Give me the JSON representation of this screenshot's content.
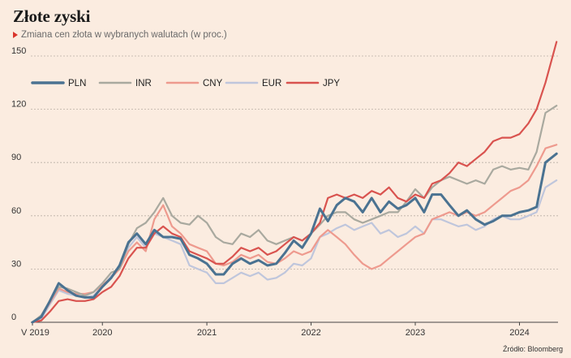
{
  "title": "Złote zyski",
  "subtitle": "Zmiana cen złota w wybranych walutach (w proc.)",
  "source": "Źródło: Bloomberg",
  "chart_data": {
    "type": "line",
    "ylim": [
      0,
      150
    ],
    "yticks": [
      0,
      30,
      60,
      90,
      120,
      150
    ],
    "xlim": [
      "2019-05-01",
      "2024-05-15"
    ],
    "xticks": [
      {
        "label": "V 2019",
        "date": "2019-05-01"
      },
      {
        "label": "2020",
        "date": "2020-01-01"
      },
      {
        "label": "2021",
        "date": "2021-01-01"
      },
      {
        "label": "2022",
        "date": "2022-01-01"
      },
      {
        "label": "2023",
        "date": "2023-01-01"
      },
      {
        "label": "2024",
        "date": "2024-01-01"
      }
    ],
    "grid": "horizontal-dashed",
    "legend": "top-left",
    "series": [
      {
        "name": "PLN",
        "color": "#4a7291",
        "x": [
          "2019-05-01",
          "2019-06-01",
          "2019-07-01",
          "2019-08-01",
          "2019-09-01",
          "2019-10-01",
          "2019-11-01",
          "2019-12-01",
          "2020-01-01",
          "2020-02-01",
          "2020-03-01",
          "2020-04-01",
          "2020-05-01",
          "2020-06-01",
          "2020-07-01",
          "2020-08-01",
          "2020-09-01",
          "2020-10-01",
          "2020-11-01",
          "2020-12-01",
          "2021-01-01",
          "2021-02-01",
          "2021-03-01",
          "2021-04-01",
          "2021-05-01",
          "2021-06-01",
          "2021-07-01",
          "2021-08-01",
          "2021-09-01",
          "2021-10-01",
          "2021-11-01",
          "2021-12-01",
          "2022-01-01",
          "2022-02-01",
          "2022-03-01",
          "2022-04-01",
          "2022-05-01",
          "2022-06-01",
          "2022-07-01",
          "2022-08-01",
          "2022-09-01",
          "2022-10-01",
          "2022-11-01",
          "2022-12-01",
          "2023-01-01",
          "2023-02-01",
          "2023-03-01",
          "2023-04-01",
          "2023-05-01",
          "2023-06-01",
          "2023-07-01",
          "2023-08-01",
          "2023-09-01",
          "2023-10-01",
          "2023-11-01",
          "2023-12-01",
          "2024-01-01",
          "2024-02-01",
          "2024-03-01",
          "2024-04-01",
          "2024-05-10"
        ],
        "values": [
          0,
          3,
          12,
          22,
          18,
          15,
          14,
          14,
          20,
          25,
          32,
          45,
          50,
          44,
          52,
          48,
          48,
          47,
          38,
          36,
          33,
          27,
          27,
          33,
          36,
          33,
          35,
          32,
          33,
          39,
          46,
          42,
          50,
          64,
          57,
          66,
          70,
          68,
          62,
          70,
          62,
          68,
          64,
          66,
          70,
          62,
          72,
          72,
          66,
          60,
          63,
          58,
          55,
          57,
          60,
          60,
          62,
          63,
          65,
          90,
          95
        ]
      },
      {
        "name": "INR",
        "color": "#a9a99f",
        "x": [
          "2019-05-01",
          "2019-06-01",
          "2019-07-01",
          "2019-08-01",
          "2019-09-01",
          "2019-10-01",
          "2019-11-01",
          "2019-12-01",
          "2020-01-01",
          "2020-02-01",
          "2020-03-01",
          "2020-04-01",
          "2020-05-01",
          "2020-06-01",
          "2020-07-01",
          "2020-08-01",
          "2020-09-01",
          "2020-10-01",
          "2020-11-01",
          "2020-12-01",
          "2021-01-01",
          "2021-02-01",
          "2021-03-01",
          "2021-04-01",
          "2021-05-01",
          "2021-06-01",
          "2021-07-01",
          "2021-08-01",
          "2021-09-01",
          "2021-10-01",
          "2021-11-01",
          "2021-12-01",
          "2022-01-01",
          "2022-02-01",
          "2022-03-01",
          "2022-04-01",
          "2022-05-01",
          "2022-06-01",
          "2022-07-01",
          "2022-08-01",
          "2022-09-01",
          "2022-10-01",
          "2022-11-01",
          "2022-12-01",
          "2023-01-01",
          "2023-02-01",
          "2023-03-01",
          "2023-04-01",
          "2023-05-01",
          "2023-06-01",
          "2023-07-01",
          "2023-08-01",
          "2023-09-01",
          "2023-10-01",
          "2023-11-01",
          "2023-12-01",
          "2024-01-01",
          "2024-02-01",
          "2024-03-01",
          "2024-04-01",
          "2024-05-10"
        ],
        "values": [
          0,
          4,
          12,
          20,
          19,
          17,
          15,
          17,
          22,
          28,
          30,
          44,
          53,
          56,
          62,
          70,
          60,
          56,
          55,
          60,
          56,
          48,
          45,
          44,
          50,
          48,
          52,
          46,
          44,
          46,
          48,
          46,
          50,
          55,
          60,
          62,
          62,
          58,
          56,
          58,
          60,
          62,
          62,
          68,
          75,
          70,
          76,
          80,
          82,
          80,
          78,
          80,
          78,
          86,
          88,
          86,
          87,
          86,
          96,
          118,
          122
        ]
      },
      {
        "name": "CNY",
        "color": "#ee9a8e",
        "x": [
          "2019-05-01",
          "2019-06-01",
          "2019-07-01",
          "2019-08-01",
          "2019-09-01",
          "2019-10-01",
          "2019-11-01",
          "2019-12-01",
          "2020-01-01",
          "2020-02-01",
          "2020-03-01",
          "2020-04-01",
          "2020-05-01",
          "2020-06-01",
          "2020-07-01",
          "2020-08-01",
          "2020-09-01",
          "2020-10-01",
          "2020-11-01",
          "2020-12-01",
          "2021-01-01",
          "2021-02-01",
          "2021-03-01",
          "2021-04-01",
          "2021-05-01",
          "2021-06-01",
          "2021-07-01",
          "2021-08-01",
          "2021-09-01",
          "2021-10-01",
          "2021-11-01",
          "2021-12-01",
          "2022-01-01",
          "2022-02-01",
          "2022-03-01",
          "2022-04-01",
          "2022-05-01",
          "2022-06-01",
          "2022-07-01",
          "2022-08-01",
          "2022-09-01",
          "2022-10-01",
          "2022-11-01",
          "2022-12-01",
          "2023-01-01",
          "2023-02-01",
          "2023-03-01",
          "2023-04-01",
          "2023-05-01",
          "2023-06-01",
          "2023-07-01",
          "2023-08-01",
          "2023-09-01",
          "2023-10-01",
          "2023-11-01",
          "2023-12-01",
          "2024-01-01",
          "2024-02-01",
          "2024-03-01",
          "2024-04-01",
          "2024-05-10"
        ],
        "values": [
          0,
          3,
          11,
          19,
          17,
          16,
          16,
          17,
          21,
          25,
          30,
          40,
          45,
          40,
          58,
          66,
          54,
          50,
          44,
          42,
          40,
          33,
          32,
          34,
          38,
          36,
          38,
          34,
          33,
          36,
          40,
          38,
          40,
          48,
          52,
          48,
          44,
          38,
          33,
          30,
          32,
          36,
          40,
          44,
          48,
          50,
          58,
          60,
          62,
          60,
          62,
          60,
          62,
          66,
          70,
          74,
          76,
          80,
          88,
          98,
          100
        ]
      },
      {
        "name": "EUR",
        "color": "#bfc6dc",
        "x": [
          "2019-05-01",
          "2019-06-01",
          "2019-07-01",
          "2019-08-01",
          "2019-09-01",
          "2019-10-01",
          "2019-11-01",
          "2019-12-01",
          "2020-01-01",
          "2020-02-01",
          "2020-03-01",
          "2020-04-01",
          "2020-05-01",
          "2020-06-01",
          "2020-07-01",
          "2020-08-01",
          "2020-09-01",
          "2020-10-01",
          "2020-11-01",
          "2020-12-01",
          "2021-01-01",
          "2021-02-01",
          "2021-03-01",
          "2021-04-01",
          "2021-05-01",
          "2021-06-01",
          "2021-07-01",
          "2021-08-01",
          "2021-09-01",
          "2021-10-01",
          "2021-11-01",
          "2021-12-01",
          "2022-01-01",
          "2022-02-01",
          "2022-03-01",
          "2022-04-01",
          "2022-05-01",
          "2022-06-01",
          "2022-07-01",
          "2022-08-01",
          "2022-09-01",
          "2022-10-01",
          "2022-11-01",
          "2022-12-01",
          "2023-01-01",
          "2023-02-01",
          "2023-03-01",
          "2023-04-01",
          "2023-05-01",
          "2023-06-01",
          "2023-07-01",
          "2023-08-01",
          "2023-09-01",
          "2023-10-01",
          "2023-11-01",
          "2023-12-01",
          "2024-01-01",
          "2024-02-01",
          "2024-03-01",
          "2024-04-01",
          "2024-05-10"
        ],
        "values": [
          0,
          2,
          10,
          18,
          16,
          15,
          14,
          15,
          20,
          26,
          30,
          42,
          48,
          42,
          50,
          48,
          46,
          44,
          32,
          30,
          28,
          22,
          22,
          25,
          28,
          26,
          28,
          24,
          25,
          28,
          33,
          32,
          36,
          48,
          50,
          53,
          55,
          52,
          54,
          56,
          50,
          52,
          48,
          50,
          54,
          50,
          58,
          58,
          56,
          54,
          55,
          52,
          54,
          58,
          60,
          58,
          58,
          60,
          62,
          76,
          80
        ]
      },
      {
        "name": "JPY",
        "color": "#d9534f",
        "x": [
          "2019-05-01",
          "2019-06-01",
          "2019-07-01",
          "2019-08-01",
          "2019-09-01",
          "2019-10-01",
          "2019-11-01",
          "2019-12-01",
          "2020-01-01",
          "2020-02-01",
          "2020-03-01",
          "2020-04-01",
          "2020-05-01",
          "2020-06-01",
          "2020-07-01",
          "2020-08-01",
          "2020-09-01",
          "2020-10-01",
          "2020-11-01",
          "2020-12-01",
          "2021-01-01",
          "2021-02-01",
          "2021-03-01",
          "2021-04-01",
          "2021-05-01",
          "2021-06-01",
          "2021-07-01",
          "2021-08-01",
          "2021-09-01",
          "2021-10-01",
          "2021-11-01",
          "2021-12-01",
          "2022-01-01",
          "2022-02-01",
          "2022-03-01",
          "2022-04-01",
          "2022-05-01",
          "2022-06-01",
          "2022-07-01",
          "2022-08-01",
          "2022-09-01",
          "2022-10-01",
          "2022-11-01",
          "2022-12-01",
          "2023-01-01",
          "2023-02-01",
          "2023-03-01",
          "2023-04-01",
          "2023-05-01",
          "2023-06-01",
          "2023-07-01",
          "2023-08-01",
          "2023-09-01",
          "2023-10-01",
          "2023-11-01",
          "2023-12-01",
          "2024-01-01",
          "2024-02-01",
          "2024-03-01",
          "2024-04-01",
          "2024-05-10"
        ],
        "values": [
          0,
          1,
          6,
          12,
          13,
          12,
          12,
          13,
          17,
          20,
          26,
          36,
          42,
          42,
          50,
          54,
          50,
          48,
          40,
          38,
          36,
          33,
          33,
          37,
          42,
          40,
          42,
          38,
          40,
          44,
          48,
          46,
          50,
          56,
          70,
          72,
          70,
          72,
          70,
          74,
          72,
          76,
          70,
          68,
          72,
          70,
          78,
          80,
          84,
          90,
          88,
          92,
          96,
          102,
          104,
          104,
          106,
          112,
          120,
          135,
          158
        ]
      }
    ]
  }
}
